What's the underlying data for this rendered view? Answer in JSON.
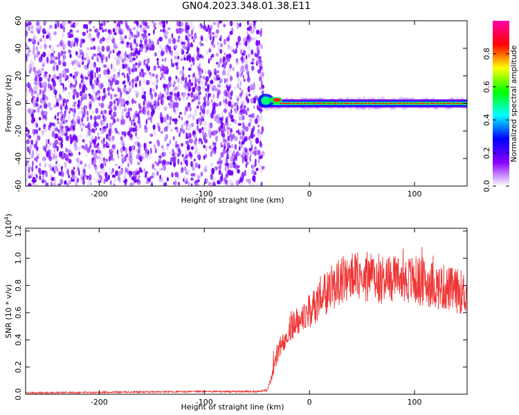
{
  "title": "GN04.2023.348.01.38.E11",
  "chart_data": [
    {
      "type": "heatmap",
      "xlabel": "Height of straight line (km)",
      "ylabel": "Frequency (Hz)",
      "xlim": [
        -270,
        150
      ],
      "ylim": [
        -60,
        60
      ],
      "x_ticks": [
        -200,
        -100,
        0,
        100
      ],
      "y_ticks": [
        -60,
        -40,
        -20,
        0,
        20,
        40,
        60
      ],
      "noise_region_x": [
        -270,
        -48
      ],
      "signal_line": {
        "x_start": -48,
        "x_end": 150,
        "frequency": 0
      },
      "colorbar": {
        "label": "Normalized spectral amplitude",
        "range": [
          0,
          1
        ],
        "ticks": [
          0.0,
          0.2,
          0.4,
          0.6,
          0.8
        ],
        "colors": [
          "#ffffff",
          "#8800ff",
          "#0000ff",
          "#00ffff",
          "#00ff00",
          "#ffff00",
          "#ff0000",
          "#ff00aa"
        ]
      }
    },
    {
      "type": "line",
      "xlabel": "Height of straight line (km)",
      "ylabel": "SNR (10 * v/v)",
      "scale_label": "(x10",
      "scale_exp": "4",
      "scale_close": ")",
      "xlim": [
        -270,
        150
      ],
      "ylim": [
        0,
        1.22
      ],
      "x_ticks": [
        -200,
        -100,
        0,
        100
      ],
      "y_ticks": [
        0.0,
        0.2,
        0.4,
        0.6,
        0.8,
        1.0,
        1.2
      ],
      "color": "#ee3333",
      "series": [
        {
          "x": [
            -270,
            -100,
            -50,
            -40,
            -35,
            -30,
            -25,
            -20,
            -15,
            -10,
            -5,
            0,
            5,
            10,
            15,
            20,
            25,
            30,
            40,
            50,
            60,
            70,
            80,
            90,
            100,
            110,
            120,
            130,
            140,
            150
          ],
          "y": [
            0.01,
            0.02,
            0.02,
            0.03,
            0.15,
            0.3,
            0.4,
            0.48,
            0.52,
            0.56,
            0.6,
            0.6,
            0.65,
            0.7,
            0.73,
            0.77,
            0.82,
            0.84,
            0.86,
            0.86,
            0.86,
            0.85,
            0.85,
            0.84,
            0.84,
            0.82,
            0.8,
            0.78,
            0.76,
            0.74
          ]
        }
      ]
    }
  ]
}
